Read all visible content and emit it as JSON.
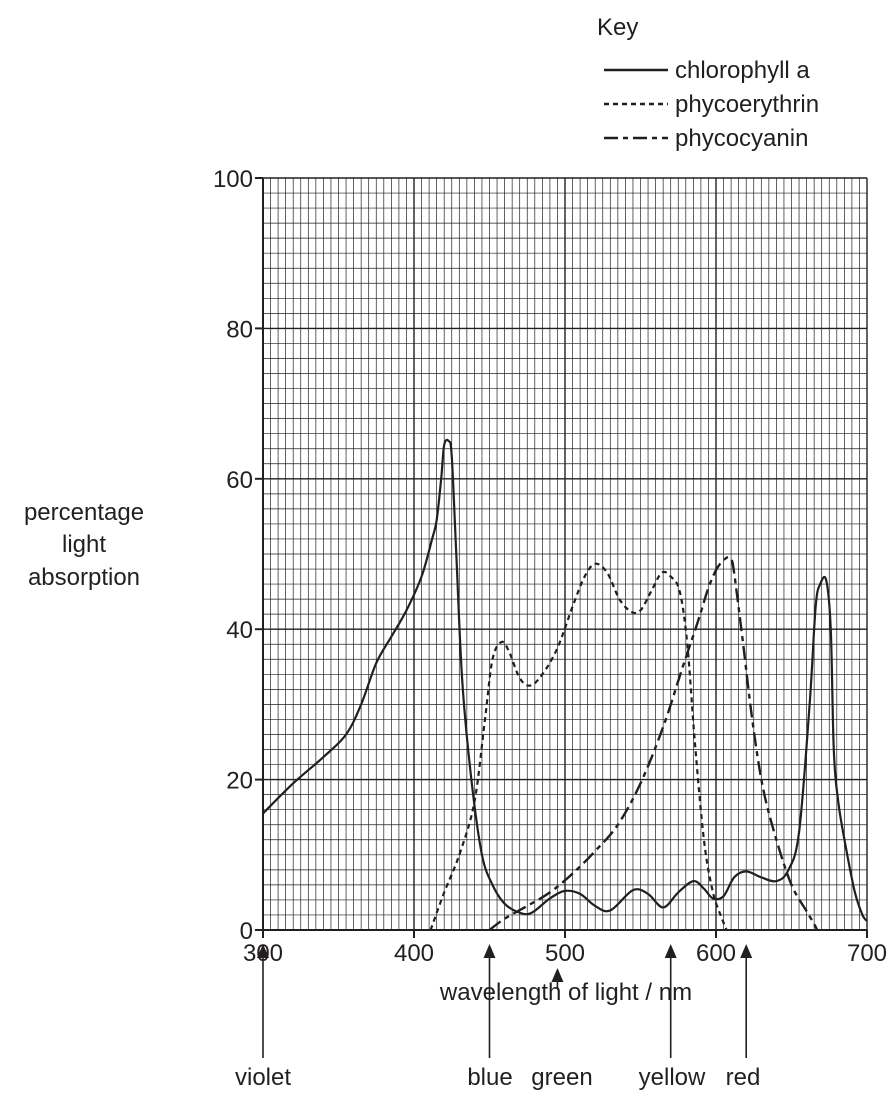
{
  "chart_data": {
    "type": "line",
    "title": "",
    "xlabel": "wavelength of light / nm",
    "ylabel": [
      "percentage",
      "light",
      "absorption"
    ],
    "xlim": [
      300,
      700
    ],
    "ylim": [
      0,
      100
    ],
    "x_ticks": [
      "300",
      "400",
      "500",
      "600",
      "700"
    ],
    "y_ticks": [
      "0",
      "20",
      "40",
      "60",
      "80",
      "100"
    ],
    "grid": true,
    "legend": {
      "title": "Key",
      "position": "top-right",
      "entries": [
        {
          "name": "chlorophyll a",
          "style": "solid"
        },
        {
          "name": "phycoerythrin",
          "style": "dotted"
        },
        {
          "name": "phycocyanin",
          "style": "dashed"
        }
      ]
    },
    "series": [
      {
        "name": "chlorophyll a",
        "style": "solid",
        "points": [
          [
            300,
            15.5
          ],
          [
            320,
            19.5
          ],
          [
            340,
            23
          ],
          [
            355,
            26
          ],
          [
            365,
            30
          ],
          [
            375,
            35.5
          ],
          [
            385,
            39
          ],
          [
            395,
            42.5
          ],
          [
            405,
            47
          ],
          [
            412,
            52
          ],
          [
            415,
            54.5
          ],
          [
            418,
            60
          ],
          [
            420,
            64.5
          ],
          [
            423,
            65
          ],
          [
            425,
            63
          ],
          [
            428,
            50
          ],
          [
            432,
            33
          ],
          [
            438,
            20
          ],
          [
            445,
            10
          ],
          [
            452,
            6
          ],
          [
            460,
            3.5
          ],
          [
            470,
            2.3
          ],
          [
            478,
            2.3
          ],
          [
            490,
            4.2
          ],
          [
            500,
            5.2
          ],
          [
            510,
            4.8
          ],
          [
            520,
            3.2
          ],
          [
            530,
            2.6
          ],
          [
            545,
            5.3
          ],
          [
            555,
            4.8
          ],
          [
            565,
            3
          ],
          [
            575,
            5
          ],
          [
            585,
            6.5
          ],
          [
            592,
            5.5
          ],
          [
            598,
            4.2
          ],
          [
            605,
            4.5
          ],
          [
            612,
            7
          ],
          [
            620,
            7.8
          ],
          [
            630,
            7
          ],
          [
            640,
            6.5
          ],
          [
            648,
            8
          ],
          [
            655,
            13
          ],
          [
            662,
            30
          ],
          [
            666,
            43
          ],
          [
            669,
            46
          ],
          [
            673,
            46.5
          ],
          [
            676,
            40
          ],
          [
            678,
            24
          ],
          [
            681,
            17
          ],
          [
            686,
            11
          ],
          [
            692,
            5
          ],
          [
            697,
            2
          ],
          [
            700,
            1.2
          ]
        ]
      },
      {
        "name": "phycoerythrin",
        "style": "dotted",
        "points": [
          [
            411,
            0
          ],
          [
            420,
            5
          ],
          [
            430,
            10
          ],
          [
            440,
            17
          ],
          [
            447,
            28
          ],
          [
            452,
            36
          ],
          [
            458,
            38.3
          ],
          [
            463,
            37
          ],
          [
            470,
            33.5
          ],
          [
            477,
            32.5
          ],
          [
            485,
            34
          ],
          [
            495,
            37.5
          ],
          [
            505,
            43
          ],
          [
            513,
            47
          ],
          [
            520,
            48.7
          ],
          [
            528,
            47.5
          ],
          [
            536,
            44
          ],
          [
            544,
            42.3
          ],
          [
            550,
            42.5
          ],
          [
            557,
            45
          ],
          [
            564,
            47.5
          ],
          [
            570,
            47
          ],
          [
            576,
            45
          ],
          [
            581,
            38
          ],
          [
            586,
            25
          ],
          [
            592,
            12
          ],
          [
            598,
            5
          ],
          [
            604,
            1.5
          ],
          [
            607,
            0
          ]
        ]
      },
      {
        "name": "phycocyanin",
        "style": "dashed",
        "points": [
          [
            450,
            0
          ],
          [
            460,
            1.5
          ],
          [
            475,
            3.2
          ],
          [
            490,
            5
          ],
          [
            505,
            7.5
          ],
          [
            520,
            10.5
          ],
          [
            535,
            14
          ],
          [
            550,
            19.5
          ],
          [
            565,
            27
          ],
          [
            578,
            35
          ],
          [
            588,
            41
          ],
          [
            595,
            45.5
          ],
          [
            601,
            48.2
          ],
          [
            607,
            49.5
          ],
          [
            610,
            49.3
          ],
          [
            612,
            47.5
          ],
          [
            618,
            38
          ],
          [
            624,
            28
          ],
          [
            631,
            19
          ],
          [
            640,
            12
          ],
          [
            650,
            6
          ],
          [
            660,
            2.5
          ],
          [
            665,
            0.8
          ],
          [
            667,
            0
          ]
        ]
      }
    ],
    "annotations": [
      {
        "text": "violet",
        "x": 300
      },
      {
        "text": "blue",
        "x": 450
      },
      {
        "text": "green",
        "x": 495
      },
      {
        "text": "yellow",
        "x": 570
      },
      {
        "text": "red",
        "x": 620
      }
    ]
  }
}
